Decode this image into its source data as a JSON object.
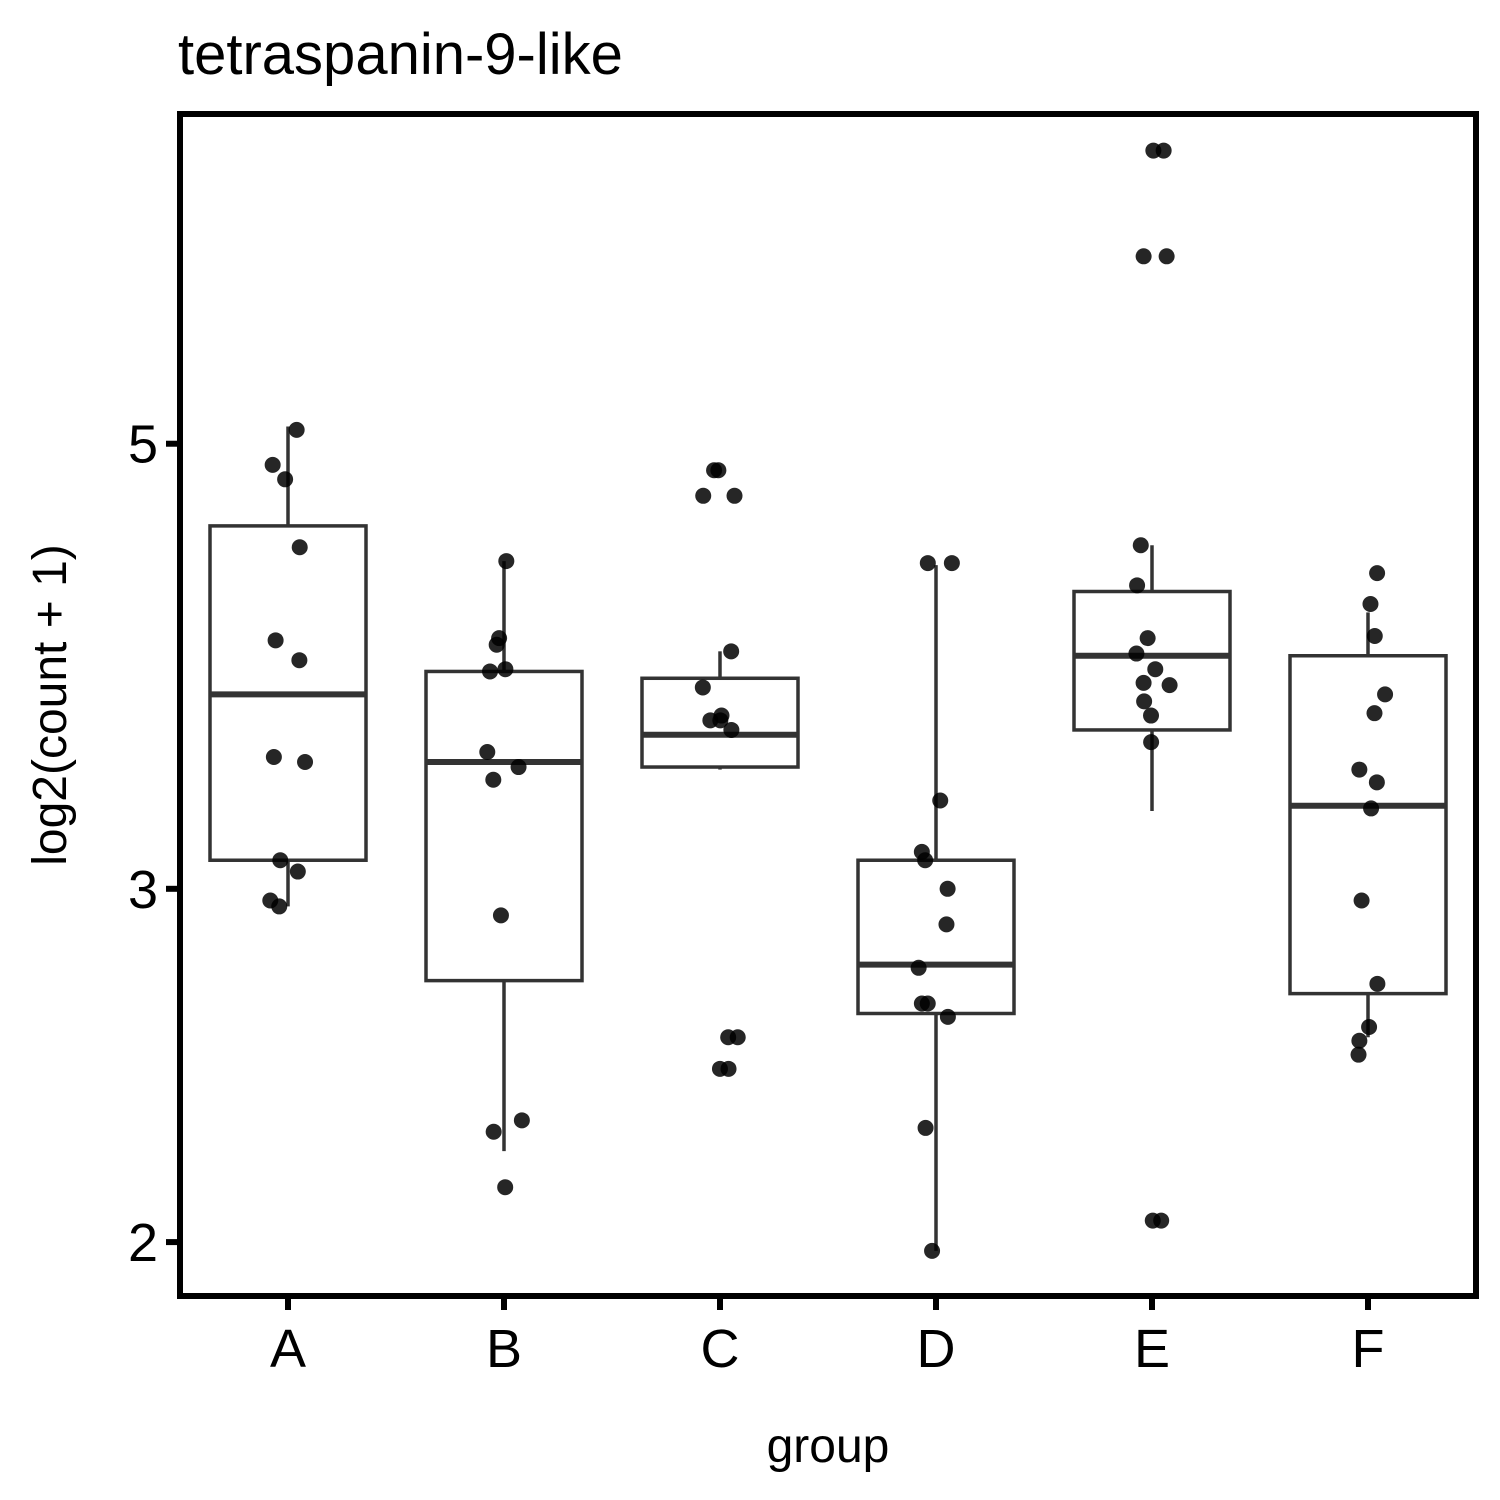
{
  "chart_data": {
    "type": "box",
    "title": "tetraspanin-9-like",
    "xlabel": "group",
    "ylabel": "log2(count + 1)",
    "y_scale": "log",
    "y_ticks": [
      2,
      3,
      5
    ],
    "ylim": [
      1.88,
      7.3
    ],
    "categories": [
      "A",
      "B",
      "C",
      "D",
      "E",
      "F"
    ],
    "boxes": [
      {
        "group": "A",
        "whisker_low": 2.94,
        "q1": 3.1,
        "median": 3.75,
        "q3": 4.55,
        "whisker_high": 5.1
      },
      {
        "group": "B",
        "whisker_low": 2.22,
        "q1": 2.7,
        "median": 3.47,
        "q3": 3.85,
        "whisker_high": 4.37
      },
      {
        "group": "C",
        "whisker_low": 3.44,
        "q1": 3.45,
        "median": 3.58,
        "q3": 3.82,
        "whisker_high": 3.94
      },
      {
        "group": "D",
        "whisker_low": 1.98,
        "q1": 2.6,
        "median": 2.75,
        "q3": 3.1,
        "whisker_high": 4.35
      },
      {
        "group": "E",
        "whisker_low": 3.28,
        "q1": 3.6,
        "median": 3.92,
        "q3": 4.22,
        "whisker_high": 4.45
      },
      {
        "group": "F",
        "whisker_low": 2.53,
        "q1": 2.66,
        "median": 3.3,
        "q3": 3.92,
        "whisker_high": 4.12
      }
    ],
    "points": [
      {
        "group": "A",
        "values": [
          5.08,
          4.88,
          4.8,
          4.44,
          3.99,
          3.9,
          3.49,
          3.47,
          3.1,
          3.06,
          2.96,
          2.94
        ]
      },
      {
        "group": "B",
        "values": [
          4.37,
          4.0,
          3.97,
          3.86,
          3.85,
          3.51,
          3.45,
          3.4,
          2.91,
          2.3,
          2.27,
          2.13
        ]
      },
      {
        "group": "C",
        "values": [
          4.85,
          4.85,
          4.71,
          4.71,
          3.94,
          3.78,
          3.66,
          3.64,
          3.64,
          3.6,
          2.53,
          2.53,
          2.44,
          2.44
        ]
      },
      {
        "group": "D",
        "values": [
          4.36,
          4.36,
          3.32,
          3.13,
          3.1,
          3.0,
          2.88,
          2.74,
          2.63,
          2.63,
          2.59,
          2.28,
          1.98
        ]
      },
      {
        "group": "E",
        "values": [
          7.0,
          7.0,
          6.2,
          6.2,
          4.45,
          4.25,
          4.0,
          3.93,
          3.86,
          3.8,
          3.79,
          3.72,
          3.66,
          3.55,
          2.05,
          2.05
        ]
      },
      {
        "group": "F",
        "values": [
          4.31,
          4.16,
          4.01,
          3.75,
          3.67,
          3.44,
          3.39,
          3.29,
          2.96,
          2.69,
          2.56,
          2.52,
          2.48
        ]
      }
    ],
    "box_color": "#333333",
    "point_color": "#000000",
    "grid": false,
    "legend": "none"
  }
}
